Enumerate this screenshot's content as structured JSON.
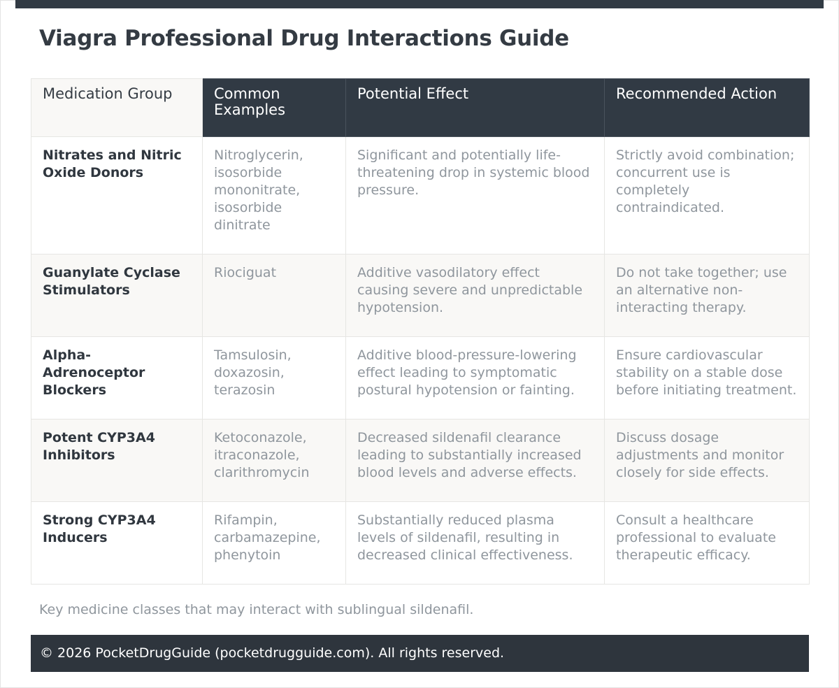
{
  "page": {
    "title": "Viagra Professional Drug Interactions Guide",
    "caption": "Key medicine classes that may interact with sublingual sildenafil.",
    "footer": "© 2026 PocketDrugGuide (pocketdrugguide.com). All rights reserved."
  },
  "table": {
    "headers": [
      "Medication Group",
      "Common Examples",
      "Potential Effect",
      "Recommended Action"
    ],
    "rows": [
      {
        "group": "Nitrates and Nitric Oxide Donors",
        "examples": "Nitroglycerin, isosorbide mononitrate, isosorbide dinitrate",
        "effect": "Significant and potentially life-threatening drop in systemic blood pressure.",
        "action": "Strictly avoid combination; concurrent use is completely contraindicated."
      },
      {
        "group": "Guanylate Cyclase Stimulators",
        "examples": "Riociguat",
        "effect": "Additive vasodilatory effect causing severe and unpredictable hypotension.",
        "action": "Do not take together; use an alternative non-interacting therapy."
      },
      {
        "group": "Alpha-Adrenoceptor Blockers",
        "examples": "Tamsulosin, doxazosin, terazosin",
        "effect": "Additive blood-pressure-lowering effect leading to symptomatic postural hypotension or fainting.",
        "action": "Ensure cardiovascular stability on a stable dose before initiating treatment."
      },
      {
        "group": "Potent CYP3A4 Inhibitors",
        "examples": "Ketoconazole, itraconazole, clarithromycin",
        "effect": "Decreased sildenafil clearance leading to substantially increased blood levels and adverse effects.",
        "action": "Discuss dosage adjustments and monitor closely for side effects."
      },
      {
        "group": "Strong CYP3A4 Inducers",
        "examples": "Rifampin, carbamazepine, phenytoin",
        "effect": "Substantially reduced plasma levels of sildenafil, resulting in decreased clinical effectiveness.",
        "action": "Consult a healthcare professional to evaluate therapeutic efficacy."
      }
    ]
  },
  "colors": {
    "header_dark": "#313a44",
    "footer": "#2e353d",
    "row_alt": "#f9f8f6",
    "muted_text": "#8f969d",
    "heading_text": "#343b43"
  }
}
